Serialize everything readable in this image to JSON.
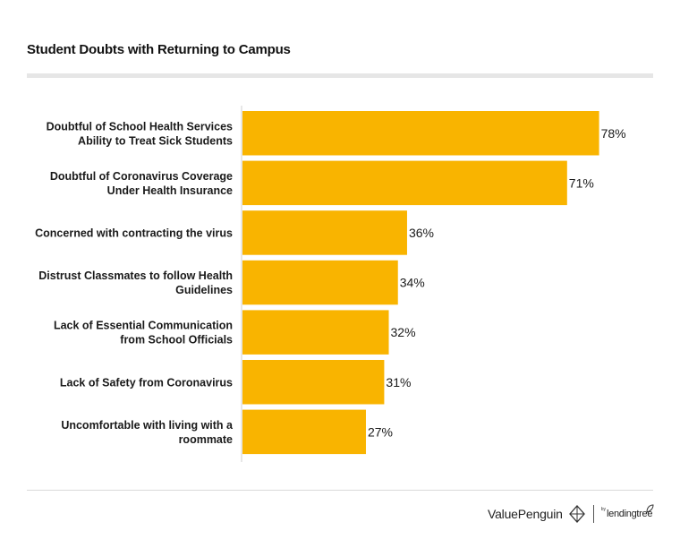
{
  "header": {
    "title": "Student Doubts with Returning to Campus"
  },
  "chart_data": {
    "type": "bar",
    "orientation": "horizontal",
    "title": "Student Doubts with Returning to Campus",
    "xlabel": "",
    "ylabel": "",
    "xlim": [
      0,
      100
    ],
    "grid": false,
    "bar_color": "#F9B400",
    "value_suffix": "%",
    "categories": [
      [
        "Doubtful of School Health Services",
        "Ability to Treat Sick Students"
      ],
      [
        "Doubtful of Coronavirus Coverage",
        "Under Health Insurance"
      ],
      [
        "Concerned with contracting the virus"
      ],
      [
        "Distrust Classmates to follow Health",
        "Guidelines"
      ],
      [
        "Lack of Essential Communication",
        "from School Officials"
      ],
      [
        "Lack of Safety from Coronavirus"
      ],
      [
        "Uncomfortable with living with a",
        "roommate"
      ]
    ],
    "values": [
      78,
      71,
      36,
      34,
      32,
      31,
      27
    ],
    "value_labels": [
      "78%",
      "71%",
      "36%",
      "34%",
      "32%",
      "31%",
      "27%"
    ]
  },
  "footer": {
    "brand": "ValuePenguin",
    "partner_by": "by",
    "partner": "lendingtree"
  }
}
